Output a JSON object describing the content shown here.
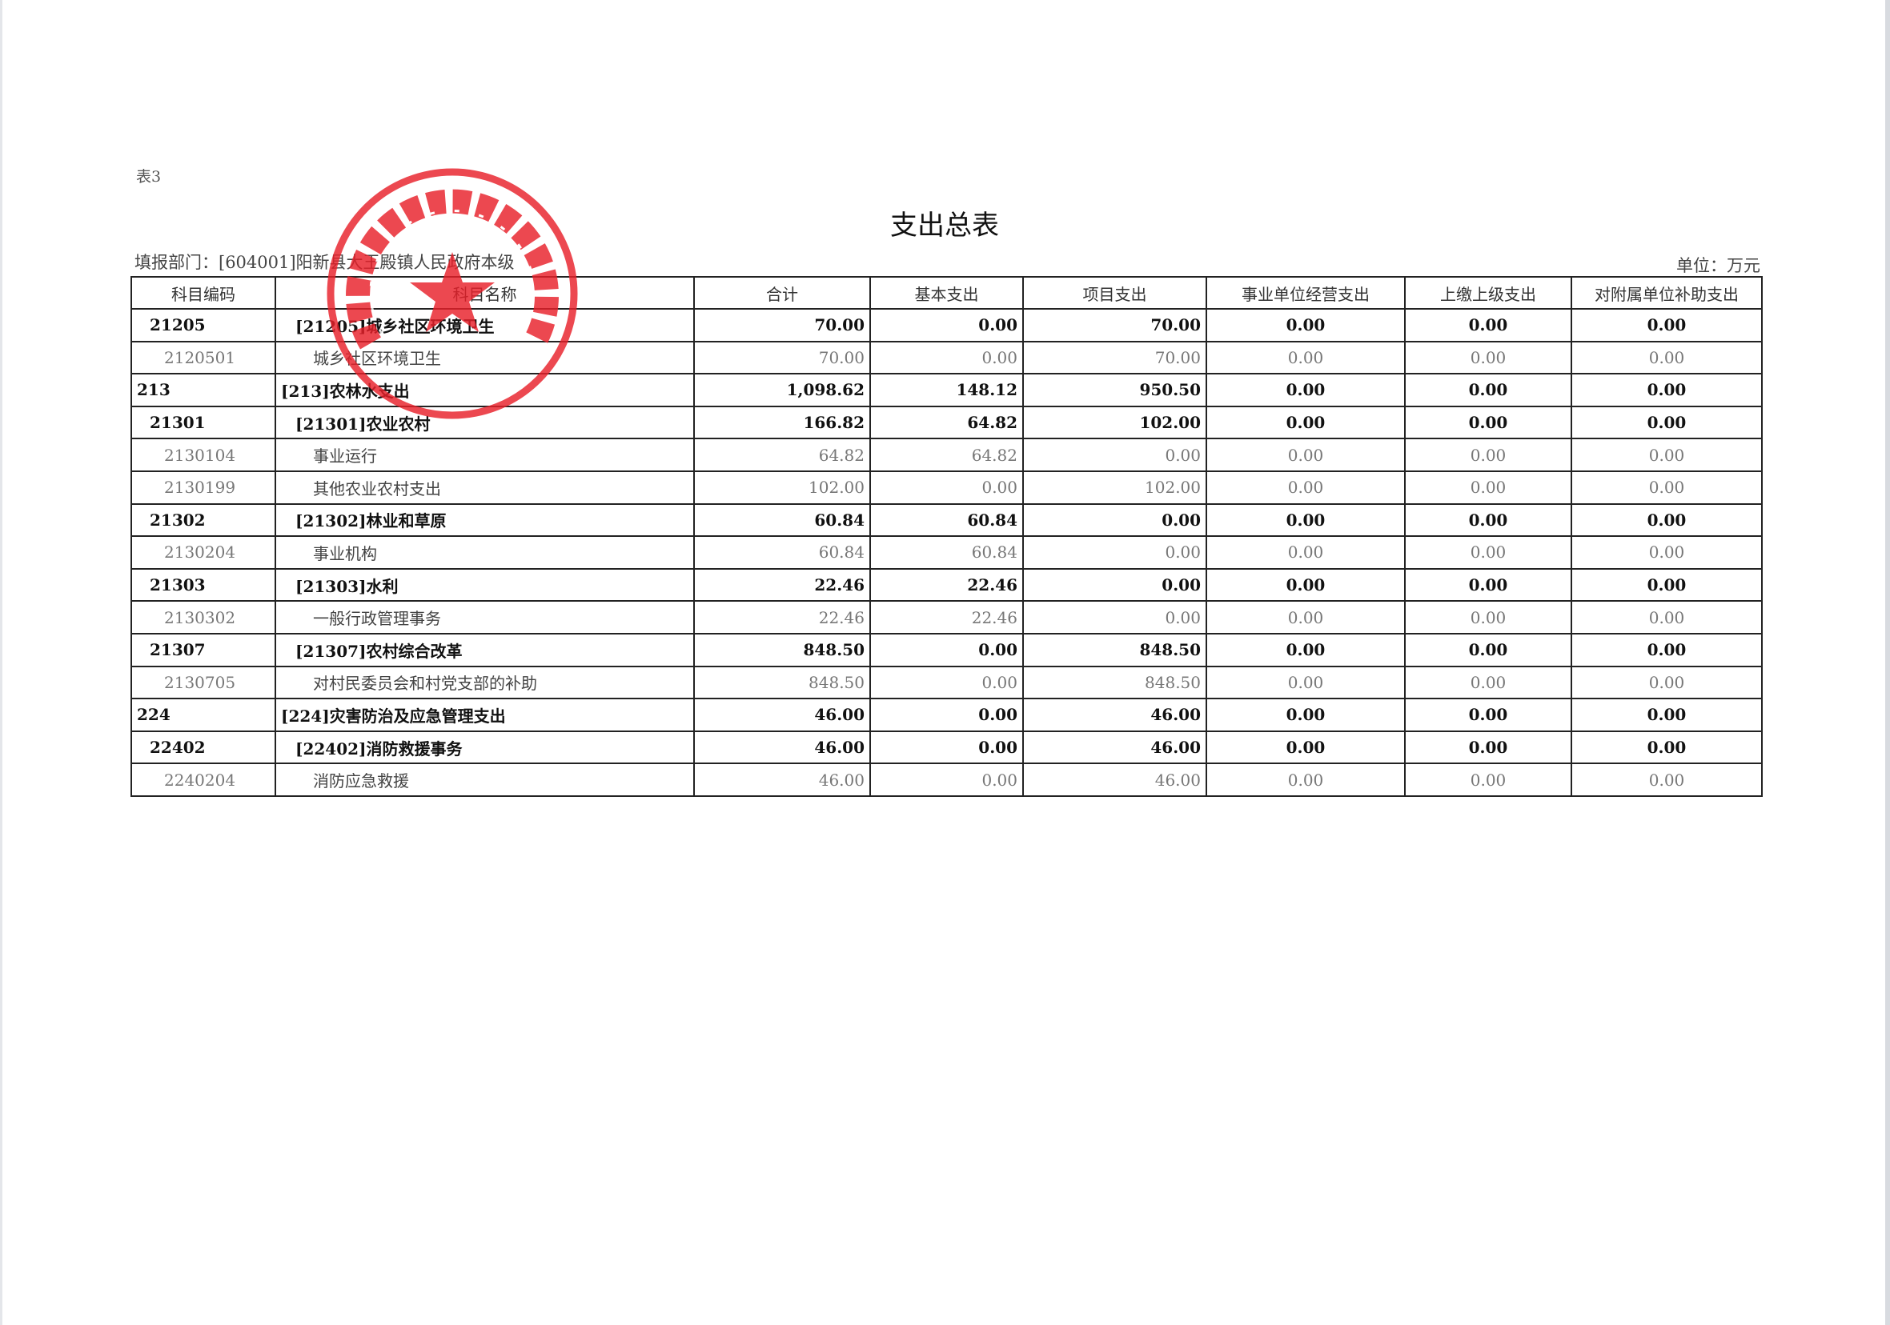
{
  "table_no": "表3",
  "title": "支出总表",
  "dept": "填报部门：[604001]阳新县大王殿镇人民政府本级",
  "unit": "单位：万元",
  "stamp_text": "阳新县大王殿镇人民政府",
  "stamp_color": "#e8202a",
  "headers": [
    "科目编码",
    "科目名称",
    "合计",
    "基本支出",
    "项目支出",
    "事业单位经营支出",
    "上缴上级支出",
    "对附属单位补助支出"
  ],
  "rows": [
    {
      "level": 2,
      "code": "21205",
      "name": "[21205]城乡社区环境卫生",
      "total": "70.00",
      "basic": "0.00",
      "project": "70.00",
      "biz": "0.00",
      "upper": "0.00",
      "sub": "0.00"
    },
    {
      "level": 3,
      "code": "2120501",
      "name": "城乡社区环境卫生",
      "total": "70.00",
      "basic": "0.00",
      "project": "70.00",
      "biz": "0.00",
      "upper": "0.00",
      "sub": "0.00"
    },
    {
      "level": 1,
      "code": "213",
      "name": "[213]农林水支出",
      "total": "1,098.62",
      "basic": "148.12",
      "project": "950.50",
      "biz": "0.00",
      "upper": "0.00",
      "sub": "0.00"
    },
    {
      "level": 2,
      "code": "21301",
      "name": "[21301]农业农村",
      "total": "166.82",
      "basic": "64.82",
      "project": "102.00",
      "biz": "0.00",
      "upper": "0.00",
      "sub": "0.00"
    },
    {
      "level": 3,
      "code": "2130104",
      "name": "事业运行",
      "total": "64.82",
      "basic": "64.82",
      "project": "0.00",
      "biz": "0.00",
      "upper": "0.00",
      "sub": "0.00"
    },
    {
      "level": 3,
      "code": "2130199",
      "name": "其他农业农村支出",
      "total": "102.00",
      "basic": "0.00",
      "project": "102.00",
      "biz": "0.00",
      "upper": "0.00",
      "sub": "0.00"
    },
    {
      "level": 2,
      "code": "21302",
      "name": "[21302]林业和草原",
      "total": "60.84",
      "basic": "60.84",
      "project": "0.00",
      "biz": "0.00",
      "upper": "0.00",
      "sub": "0.00"
    },
    {
      "level": 3,
      "code": "2130204",
      "name": "事业机构",
      "total": "60.84",
      "basic": "60.84",
      "project": "0.00",
      "biz": "0.00",
      "upper": "0.00",
      "sub": "0.00"
    },
    {
      "level": 2,
      "code": "21303",
      "name": "[21303]水利",
      "total": "22.46",
      "basic": "22.46",
      "project": "0.00",
      "biz": "0.00",
      "upper": "0.00",
      "sub": "0.00"
    },
    {
      "level": 3,
      "code": "2130302",
      "name": "一般行政管理事务",
      "total": "22.46",
      "basic": "22.46",
      "project": "0.00",
      "biz": "0.00",
      "upper": "0.00",
      "sub": "0.00"
    },
    {
      "level": 2,
      "code": "21307",
      "name": "[21307]农村综合改革",
      "total": "848.50",
      "basic": "0.00",
      "project": "848.50",
      "biz": "0.00",
      "upper": "0.00",
      "sub": "0.00"
    },
    {
      "level": 3,
      "code": "2130705",
      "name": "对村民委员会和村党支部的补助",
      "total": "848.50",
      "basic": "0.00",
      "project": "848.50",
      "biz": "0.00",
      "upper": "0.00",
      "sub": "0.00"
    },
    {
      "level": 1,
      "code": "224",
      "name": "[224]灾害防治及应急管理支出",
      "total": "46.00",
      "basic": "0.00",
      "project": "46.00",
      "biz": "0.00",
      "upper": "0.00",
      "sub": "0.00"
    },
    {
      "level": 2,
      "code": "22402",
      "name": "[22402]消防救援事务",
      "total": "46.00",
      "basic": "0.00",
      "project": "46.00",
      "biz": "0.00",
      "upper": "0.00",
      "sub": "0.00"
    },
    {
      "level": 3,
      "code": "2240204",
      "name": "消防应急救援",
      "total": "46.00",
      "basic": "0.00",
      "project": "46.00",
      "biz": "0.00",
      "upper": "0.00",
      "sub": "0.00"
    }
  ]
}
